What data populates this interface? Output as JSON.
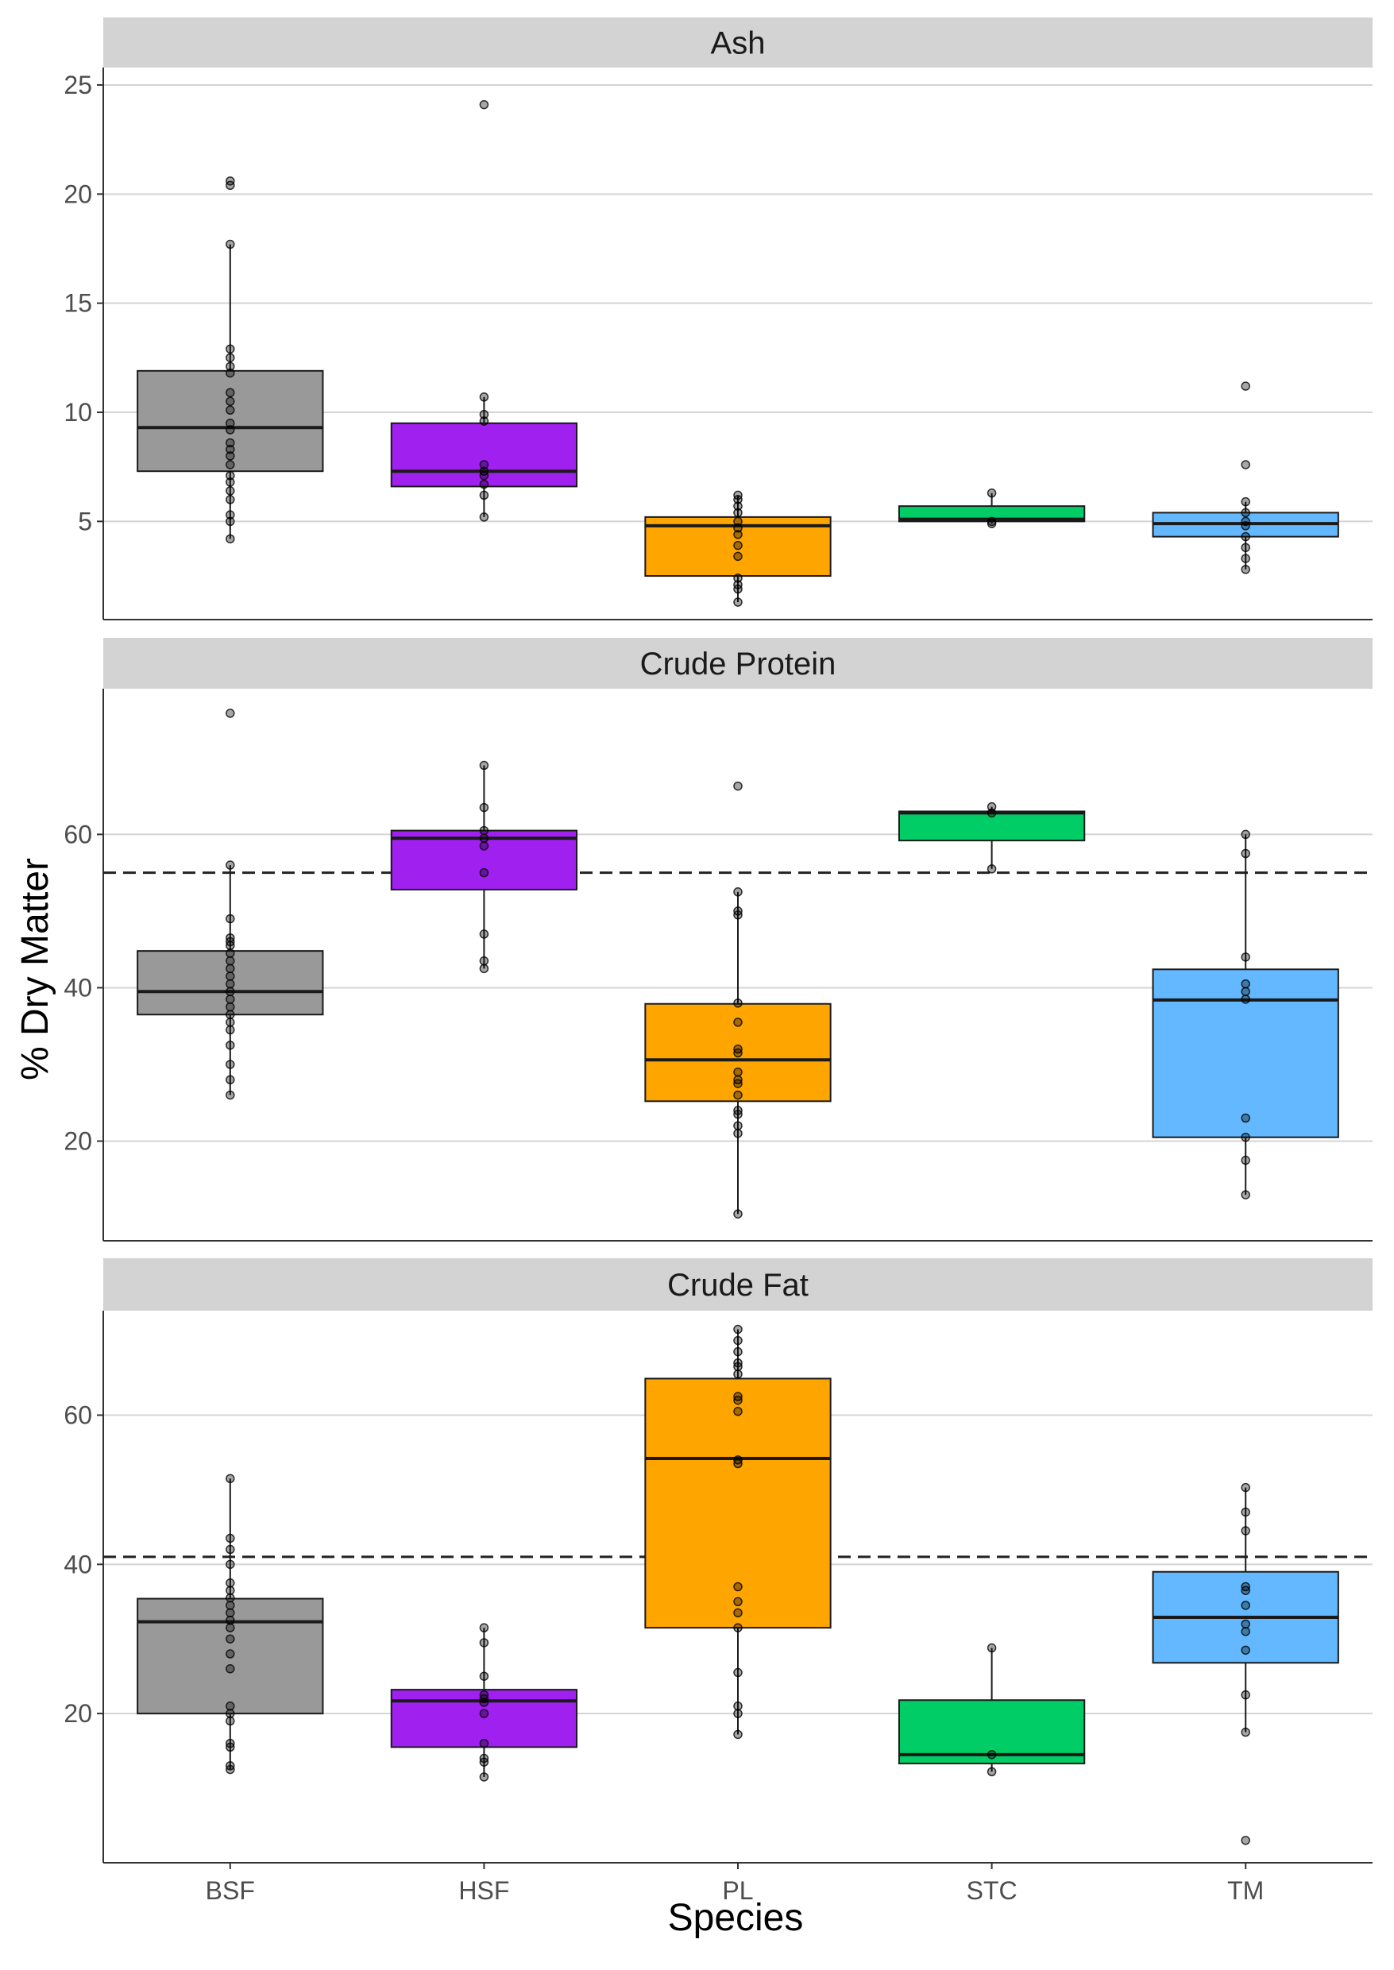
{
  "chart_data": {
    "type": "box",
    "xlabel": "Species",
    "ylabel": "% Dry Matter",
    "categories": [
      "BSF",
      "HSF",
      "PL",
      "STC",
      "TM"
    ],
    "colors": {
      "BSF": "#999999",
      "HSF": "#A020F0",
      "PL": "#FFA500",
      "STC": "#00CD66",
      "TM": "#63B8FF"
    },
    "grid": true,
    "strip_background": "#D3D3D3",
    "panels": [
      {
        "title": "Ash",
        "ylim": [
          0.5,
          25.8
        ],
        "yticks": [
          5,
          10,
          15,
          20,
          25
        ],
        "reference_line": null,
        "boxes": [
          {
            "category": "BSF",
            "whisker_low": 4.2,
            "q1": 7.3,
            "median": 9.3,
            "q3": 11.9,
            "whisker_high": 17.7,
            "points": [
              20.6,
              20.4,
              17.7,
              12.9,
              12.5,
              12.1,
              11.8,
              10.9,
              10.5,
              10.1,
              9.5,
              9.2,
              8.6,
              8.3,
              8.0,
              7.6,
              7.1,
              6.8,
              6.4,
              6.0,
              5.3,
              5.0,
              4.2
            ]
          },
          {
            "category": "HSF",
            "whisker_low": 5.2,
            "q1": 6.6,
            "median": 7.3,
            "q3": 9.5,
            "whisker_high": 10.7,
            "points": [
              24.1,
              10.7,
              9.9,
              9.6,
              7.6,
              7.3,
              7.1,
              6.7,
              6.2,
              5.2
            ]
          },
          {
            "category": "PL",
            "whisker_low": 1.3,
            "q1": 2.5,
            "median": 4.8,
            "q3": 5.2,
            "whisker_high": 6.2,
            "points": [
              6.2,
              6.0,
              5.7,
              5.4,
              5.0,
              4.7,
              4.4,
              3.9,
              3.4,
              2.4,
              2.1,
              1.9,
              1.3
            ]
          },
          {
            "category": "STC",
            "whisker_low": 4.9,
            "q1": 5.0,
            "median": 5.1,
            "q3": 5.7,
            "whisker_high": 6.3,
            "points": [
              6.3,
              5.0,
              4.9
            ]
          },
          {
            "category": "TM",
            "whisker_low": 2.8,
            "q1": 4.3,
            "median": 4.9,
            "q3": 5.4,
            "whisker_high": 5.9,
            "points": [
              11.2,
              7.6,
              5.9,
              5.4,
              5.0,
              4.8,
              4.3,
              3.8,
              3.3,
              2.8
            ]
          }
        ]
      },
      {
        "title": "Crude Protein",
        "ylim": [
          7,
          79
        ],
        "yticks": [
          20,
          40,
          60
        ],
        "reference_line": 55,
        "boxes": [
          {
            "category": "BSF",
            "whisker_low": 26,
            "q1": 36.5,
            "median": 39.5,
            "q3": 44.8,
            "whisker_high": 56,
            "points": [
              75.8,
              56,
              49,
              46.5,
              46,
              45.5,
              44.5,
              43.5,
              42.5,
              41.5,
              40.5,
              39.5,
              38.5,
              37.5,
              36.5,
              35.5,
              34.5,
              32.5,
              30,
              28,
              26
            ]
          },
          {
            "category": "HSF",
            "whisker_low": 42.5,
            "q1": 52.8,
            "median": 59.5,
            "q3": 60.5,
            "whisker_high": 69,
            "points": [
              69,
              63.5,
              60.5,
              59.5,
              58.5,
              55,
              47,
              43.5,
              42.5
            ]
          },
          {
            "category": "PL",
            "whisker_low": 10.5,
            "q1": 25.2,
            "median": 30.6,
            "q3": 37.9,
            "whisker_high": 52.5,
            "points": [
              66.3,
              52.5,
              50,
              49.5,
              38,
              35.5,
              32,
              31.5,
              29,
              28,
              27.5,
              26,
              24,
              23.5,
              22,
              21,
              10.5
            ]
          },
          {
            "category": "STC",
            "whisker_low": 55.5,
            "q1": 59.2,
            "median": 62.8,
            "q3": 63,
            "whisker_high": 63.6,
            "points": [
              63.6,
              62.8,
              55.5
            ]
          },
          {
            "category": "TM",
            "whisker_low": 13,
            "q1": 20.5,
            "median": 38.4,
            "q3": 42.4,
            "whisker_high": 60,
            "points": [
              60,
              57.5,
              44,
              40.5,
              39.5,
              38.5,
              23,
              20.5,
              17.5,
              13
            ]
          }
        ]
      },
      {
        "title": "Crude Fat",
        "ylim": [
          0,
          74
        ],
        "yticks": [
          20,
          40,
          60
        ],
        "reference_line": 41,
        "boxes": [
          {
            "category": "BSF",
            "whisker_low": 12.5,
            "q1": 20,
            "median": 32.3,
            "q3": 35.4,
            "whisker_high": 51.5,
            "points": [
              51.5,
              43.5,
              42,
              40,
              37.5,
              36.5,
              35.5,
              34.5,
              33.5,
              32.5,
              31.5,
              30,
              28,
              26,
              21,
              20,
              19,
              16,
              15.5,
              13,
              12.5
            ]
          },
          {
            "category": "HSF",
            "whisker_low": 11.5,
            "q1": 15.5,
            "median": 21.7,
            "q3": 23.2,
            "whisker_high": 31.5,
            "points": [
              31.5,
              29.5,
              25,
              22.5,
              22,
              21.5,
              20,
              16,
              14,
              13.5,
              11.5
            ]
          },
          {
            "category": "PL",
            "whisker_low": 17.2,
            "q1": 31.5,
            "median": 54.2,
            "q3": 64.9,
            "whisker_high": 71.5,
            "points": [
              71.5,
              70,
              68.5,
              67,
              66.5,
              65.5,
              62.5,
              62,
              60.5,
              54,
              53.5,
              37,
              35,
              33.5,
              31.5,
              25.5,
              21,
              20,
              17.2
            ]
          },
          {
            "category": "STC",
            "whisker_low": 12.2,
            "q1": 13.3,
            "median": 14.5,
            "q3": 21.8,
            "whisker_high": 28.8,
            "points": [
              28.8,
              14.5,
              12.2
            ]
          },
          {
            "category": "TM",
            "whisker_low": 17.5,
            "q1": 26.8,
            "median": 32.9,
            "q3": 39,
            "whisker_high": 50.3,
            "points": [
              50.3,
              47,
              44.5,
              37,
              36.5,
              34.5,
              32,
              31,
              28.5,
              22.5,
              17.5,
              3
            ]
          }
        ]
      }
    ]
  }
}
